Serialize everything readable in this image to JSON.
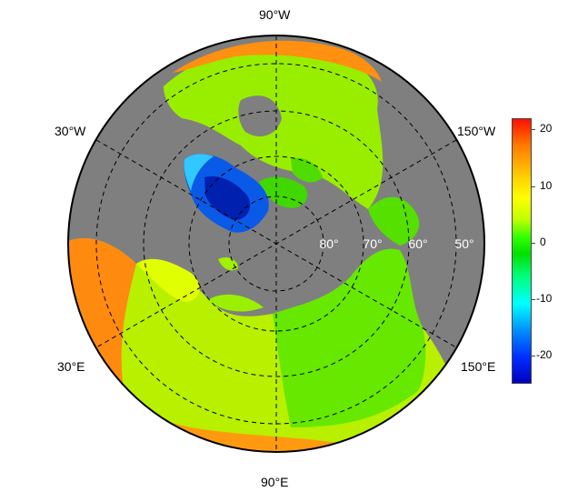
{
  "map": {
    "projection": "north-polar-stereographic",
    "ocean_color": "#7f7f7f",
    "lon_labels": {
      "top": "90°W",
      "upper_left": "30°W",
      "upper_right": "150°W",
      "lower_left": "30°E",
      "lower_right": "150°E",
      "bottom": "90°E"
    },
    "lat_labels": [
      "80°",
      "70°",
      "60°",
      "50°"
    ]
  },
  "colorbar": {
    "ticks": [
      "20",
      "10",
      "0",
      "-10",
      "-20"
    ],
    "tick_values": [
      20,
      10,
      0,
      -10,
      -20
    ],
    "min": -25,
    "max": 22
  }
}
